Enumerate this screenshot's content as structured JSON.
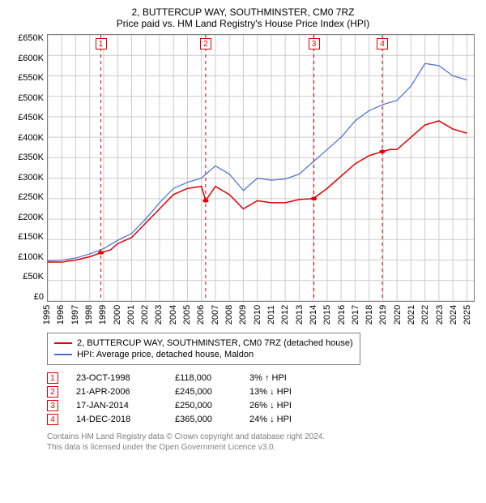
{
  "title_line1": "2, BUTTERCUP WAY, SOUTHMINSTER, CM0 7RZ",
  "title_line2": "Price paid vs. HM Land Registry's House Price Index (HPI)",
  "chart": {
    "type": "line",
    "background_color": "#ffffff",
    "grid_color": "#cccccc",
    "border_color": "#808080",
    "xlim": [
      1995,
      2025.5
    ],
    "ylim": [
      0,
      650000
    ],
    "ytick_step": 50000,
    "yticks_labels": [
      "£650K",
      "£600K",
      "£550K",
      "£500K",
      "£450K",
      "£400K",
      "£350K",
      "£300K",
      "£250K",
      "£200K",
      "£150K",
      "£100K",
      "£50K",
      "£0"
    ],
    "xticks": [
      1995,
      1996,
      1997,
      1998,
      1999,
      2000,
      2001,
      2002,
      2003,
      2004,
      2005,
      2006,
      2007,
      2008,
      2009,
      2010,
      2011,
      2012,
      2013,
      2014,
      2015,
      2016,
      2017,
      2018,
      2019,
      2020,
      2021,
      2022,
      2023,
      2024,
      2025
    ],
    "series": [
      {
        "name": "price_paid",
        "color": "#e00000",
        "line_width": 1.5,
        "points": [
          [
            1995,
            95000
          ],
          [
            1996,
            95000
          ],
          [
            1997,
            100000
          ],
          [
            1998,
            108000
          ],
          [
            1998.8,
            118000
          ],
          [
            1999.5,
            125000
          ],
          [
            2000,
            140000
          ],
          [
            2001,
            155000
          ],
          [
            2002,
            190000
          ],
          [
            2003,
            225000
          ],
          [
            2004,
            260000
          ],
          [
            2005,
            275000
          ],
          [
            2006,
            280000
          ],
          [
            2006.3,
            245000
          ],
          [
            2007,
            280000
          ],
          [
            2008,
            260000
          ],
          [
            2009,
            225000
          ],
          [
            2010,
            245000
          ],
          [
            2011,
            240000
          ],
          [
            2012,
            240000
          ],
          [
            2013,
            248000
          ],
          [
            2014,
            250000
          ],
          [
            2015,
            275000
          ],
          [
            2016,
            305000
          ],
          [
            2017,
            335000
          ],
          [
            2018,
            355000
          ],
          [
            2018.95,
            365000
          ],
          [
            2019.5,
            370000
          ],
          [
            2020,
            370000
          ],
          [
            2021,
            400000
          ],
          [
            2022,
            430000
          ],
          [
            2023,
            440000
          ],
          [
            2024,
            420000
          ],
          [
            2025,
            410000
          ]
        ]
      },
      {
        "name": "hpi",
        "color": "#4a6fd4",
        "line_width": 1.2,
        "points": [
          [
            1995,
            98000
          ],
          [
            1996,
            100000
          ],
          [
            1997,
            105000
          ],
          [
            1998,
            115000
          ],
          [
            1999,
            128000
          ],
          [
            2000,
            148000
          ],
          [
            2001,
            165000
          ],
          [
            2002,
            200000
          ],
          [
            2003,
            240000
          ],
          [
            2004,
            275000
          ],
          [
            2005,
            290000
          ],
          [
            2006,
            300000
          ],
          [
            2007,
            330000
          ],
          [
            2008,
            310000
          ],
          [
            2009,
            270000
          ],
          [
            2010,
            300000
          ],
          [
            2011,
            295000
          ],
          [
            2012,
            298000
          ],
          [
            2013,
            310000
          ],
          [
            2014,
            340000
          ],
          [
            2015,
            370000
          ],
          [
            2016,
            400000
          ],
          [
            2017,
            440000
          ],
          [
            2018,
            465000
          ],
          [
            2019,
            480000
          ],
          [
            2020,
            490000
          ],
          [
            2021,
            525000
          ],
          [
            2022,
            580000
          ],
          [
            2023,
            575000
          ],
          [
            2024,
            550000
          ],
          [
            2025,
            540000
          ]
        ]
      }
    ],
    "transaction_markers": [
      {
        "n": "1",
        "x": 1998.8,
        "y": 118000
      },
      {
        "n": "2",
        "x": 2006.3,
        "y": 245000
      },
      {
        "n": "3",
        "x": 2014.05,
        "y": 250000
      },
      {
        "n": "4",
        "x": 2018.95,
        "y": 365000
      }
    ],
    "marker_line_color": "#e00000",
    "marker_dot_color": "#e00000",
    "marker_box_border": "#e00000",
    "marker_box_fill": "#ffffff",
    "marker_label_top_y": 640000
  },
  "legend": {
    "items": [
      {
        "color": "#e00000",
        "label": "2, BUTTERCUP WAY, SOUTHMINSTER, CM0 7RZ (detached house)"
      },
      {
        "color": "#4a6fd4",
        "label": "HPI: Average price, detached house, Maldon"
      }
    ]
  },
  "transactions": [
    {
      "n": "1",
      "date": "23-OCT-1998",
      "price": "£118,000",
      "delta": "3% ↑ HPI"
    },
    {
      "n": "2",
      "date": "21-APR-2006",
      "price": "£245,000",
      "delta": "13% ↓ HPI"
    },
    {
      "n": "3",
      "date": "17-JAN-2014",
      "price": "£250,000",
      "delta": "26% ↓ HPI"
    },
    {
      "n": "4",
      "date": "14-DEC-2018",
      "price": "£365,000",
      "delta": "24% ↓ HPI"
    }
  ],
  "footer_line1": "Contains HM Land Registry data © Crown copyright and database right 2024.",
  "footer_line2": "This data is licensed under the Open Government Licence v3.0."
}
